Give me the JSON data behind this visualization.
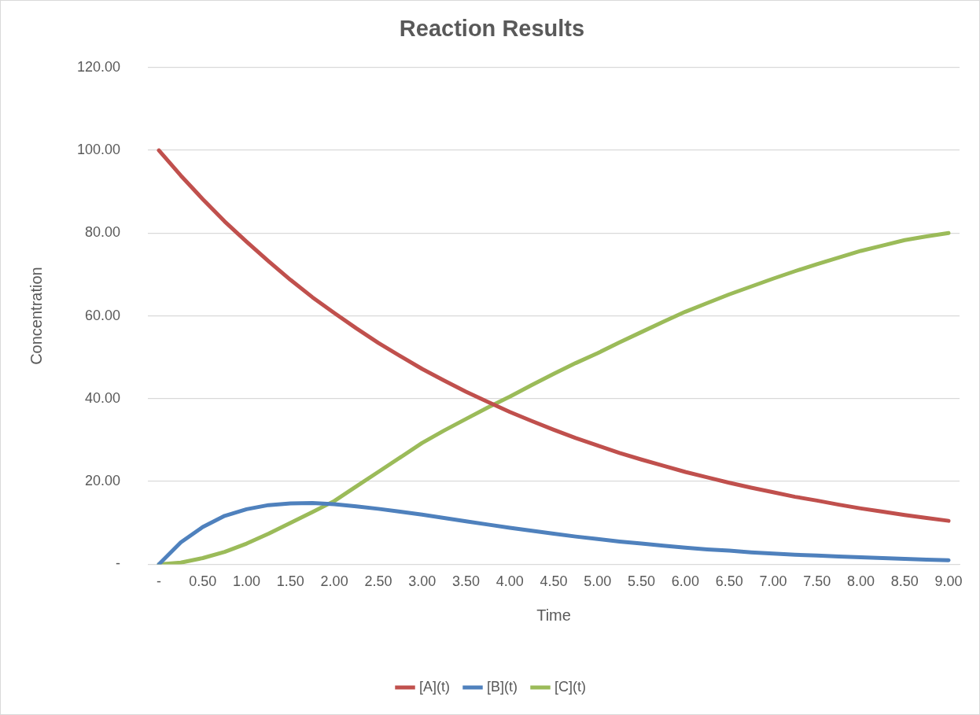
{
  "chart_data": {
    "type": "line",
    "title": "Reaction Results",
    "xlabel": "Time",
    "ylabel": "Concentration",
    "categories": [
      "-",
      null,
      "0.50",
      null,
      "1.00",
      null,
      "1.50",
      null,
      "2.00",
      null,
      "2.50",
      null,
      "3.00",
      null,
      "3.50",
      null,
      "4.00",
      null,
      "4.50",
      null,
      "5.00",
      null,
      "5.50",
      null,
      "6.00",
      null,
      "6.50",
      null,
      "7.00",
      null,
      "7.50",
      null,
      "8.00",
      null,
      "8.50",
      null,
      "9.00"
    ],
    "series": [
      {
        "name": "[A](t)",
        "color": "#c0504d",
        "values": [
          100,
          93.9,
          88.2,
          82.8,
          77.9,
          73.2,
          68.7,
          64.5,
          60.7,
          57.0,
          53.5,
          50.3,
          47.2,
          44.4,
          41.7,
          39.2,
          36.8,
          34.6,
          32.5,
          30.5,
          28.7,
          26.9,
          25.3,
          23.8,
          22.3,
          21.0,
          19.7,
          18.5,
          17.4,
          16.3,
          15.4,
          14.4,
          13.5,
          12.7,
          11.9,
          11.2,
          10.5
        ]
      },
      {
        "name": "[B](t)",
        "color": "#4f81bd",
        "values": [
          0,
          5.3,
          9.0,
          11.7,
          13.3,
          14.3,
          14.7,
          14.8,
          14.5,
          14.0,
          13.4,
          12.7,
          12.0,
          11.2,
          10.4,
          9.6,
          8.8,
          8.1,
          7.4,
          6.7,
          6.1,
          5.5,
          5.0,
          4.5,
          4.0,
          3.6,
          3.3,
          2.9,
          2.6,
          2.3,
          2.1,
          1.9,
          1.7,
          1.5,
          1.3,
          1.1,
          1.0
        ]
      },
      {
        "name": "[C](t)",
        "color": "#9bbb59",
        "values": [
          0,
          0.4,
          1.5,
          3.0,
          5.0,
          7.4,
          10.0,
          12.6,
          15.3,
          18.8,
          22.3,
          25.8,
          29.3,
          32.3,
          35.1,
          37.9,
          40.5,
          43.3,
          46.0,
          48.6,
          51.0,
          53.6,
          56.1,
          58.6,
          61.0,
          63.1,
          65.2,
          67.1,
          69.0,
          70.8,
          72.5,
          74.1,
          75.7,
          77.0,
          78.3,
          79.2,
          80.0
        ]
      }
    ],
    "ylim": [
      0,
      120
    ],
    "yticks": [
      {
        "value": 0,
        "label": "-"
      },
      {
        "value": 20,
        "label": "20.00"
      },
      {
        "value": 40,
        "label": "40.00"
      },
      {
        "value": 60,
        "label": "60.00"
      },
      {
        "value": 80,
        "label": "80.00"
      },
      {
        "value": 100,
        "label": "100.00"
      },
      {
        "value": 120,
        "label": "120.00"
      }
    ],
    "grid": "y",
    "legend": "bottom",
    "marker": "none",
    "line_style": "solid"
  }
}
